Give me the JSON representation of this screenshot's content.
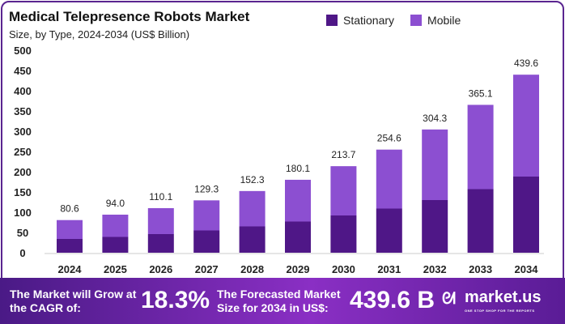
{
  "chart_data": {
    "type": "bar",
    "stacked": true,
    "title": "Medical Telepresence Robots Market",
    "subtitle": "Size, by Type, 2024-2034 (US$ Billion)",
    "categories": [
      "2024",
      "2025",
      "2026",
      "2027",
      "2028",
      "2029",
      "2030",
      "2031",
      "2032",
      "2033",
      "2034"
    ],
    "totals": [
      "80.6",
      "94.0",
      "110.1",
      "129.3",
      "152.3",
      "180.1",
      "213.7",
      "254.6",
      "304.3",
      "365.1",
      "439.6"
    ],
    "series": [
      {
        "name": "Stationary",
        "color": "#4f1787",
        "values": [
          34,
          39,
          46,
          55,
          65,
          77,
          92,
          109,
          130,
          157,
          188
        ]
      },
      {
        "name": "Mobile",
        "color": "#8c4fd1",
        "values": [
          46.6,
          55.0,
          64.1,
          74.3,
          87.3,
          103.1,
          121.7,
          145.6,
          174.3,
          208.1,
          251.6
        ]
      }
    ],
    "yticks": [
      "0",
      "50",
      "100",
      "150",
      "200",
      "250",
      "300",
      "350",
      "400",
      "450",
      "500"
    ],
    "ylim": [
      0,
      500
    ],
    "grid": false,
    "legend": "top-right"
  },
  "banner": {
    "cagr_text": "The Market will Grow at the CAGR of:",
    "cagr_value": "18.3%",
    "forecast_text": "The Forecasted Market Size for 2034 in US$:",
    "forecast_value": "439.6 B",
    "logo": "market.us",
    "logo_tagline": "ONE STOP SHOP FOR THE REPORTS"
  }
}
